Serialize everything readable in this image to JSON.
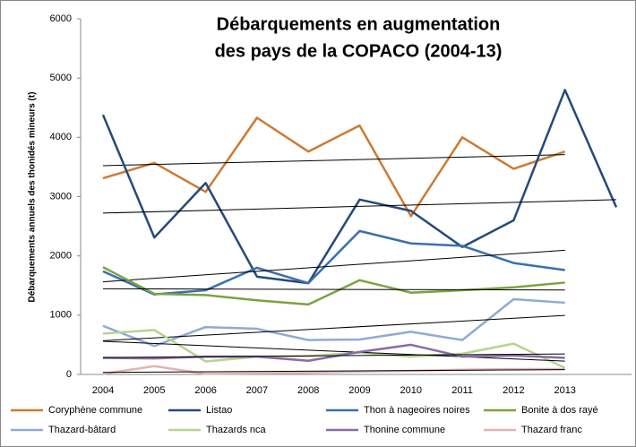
{
  "chart_data": {
    "type": "line",
    "title": [
      "Débarquements en augmentation",
      "des pays de la COPACO (2004-13)"
    ],
    "y_label": "Débarquements annuels des thonidés mineurs (t)",
    "categories": [
      "2004",
      "2005",
      "2006",
      "2007",
      "2008",
      "2009",
      "2010",
      "2011",
      "2012",
      "2013",
      null
    ],
    "ylim": [
      0,
      6000
    ],
    "yticks": [
      0,
      1000,
      2000,
      3000,
      4000,
      5000,
      6000
    ],
    "grid": false,
    "trendlines": true,
    "series": [
      {
        "name": "Coryphène commune",
        "color": "#cd7a34",
        "values": [
          3310,
          3570,
          3080,
          4330,
          3760,
          4200,
          2670,
          4000,
          3470,
          3760,
          null
        ]
      },
      {
        "name": "Listao",
        "color": "#254a7a",
        "values": [
          4380,
          2310,
          3230,
          1650,
          1540,
          2950,
          2760,
          2150,
          2600,
          4800,
          2820
        ]
      },
      {
        "name": "Thon à nageoires noires",
        "color": "#3b6fb0",
        "values": [
          1740,
          1350,
          1420,
          1800,
          1540,
          2420,
          2210,
          2170,
          1880,
          1760,
          null
        ]
      },
      {
        "name": "Bonite à dos rayé",
        "color": "#7aa342",
        "values": [
          1810,
          1360,
          1340,
          1250,
          1180,
          1590,
          1380,
          1420,
          1470,
          1550,
          null
        ]
      },
      {
        "name": "Thazard-bâtard",
        "color": "#8faad6",
        "values": [
          820,
          480,
          800,
          770,
          580,
          590,
          720,
          580,
          1270,
          1210,
          null
        ]
      },
      {
        "name": "Thazards nca",
        "color": "#b7d48e",
        "values": [
          690,
          750,
          220,
          300,
          310,
          370,
          300,
          350,
          520,
          110,
          null
        ]
      },
      {
        "name": "Thonine commune",
        "color": "#8a6aa8",
        "values": [
          280,
          270,
          300,
          300,
          230,
          380,
          500,
          300,
          320,
          280,
          null
        ]
      },
      {
        "name": "Thazard franc",
        "color": "#e2b4b4",
        "values": [
          10,
          140,
          10,
          20,
          30,
          50,
          60,
          80,
          90,
          90,
          null
        ]
      }
    ]
  }
}
